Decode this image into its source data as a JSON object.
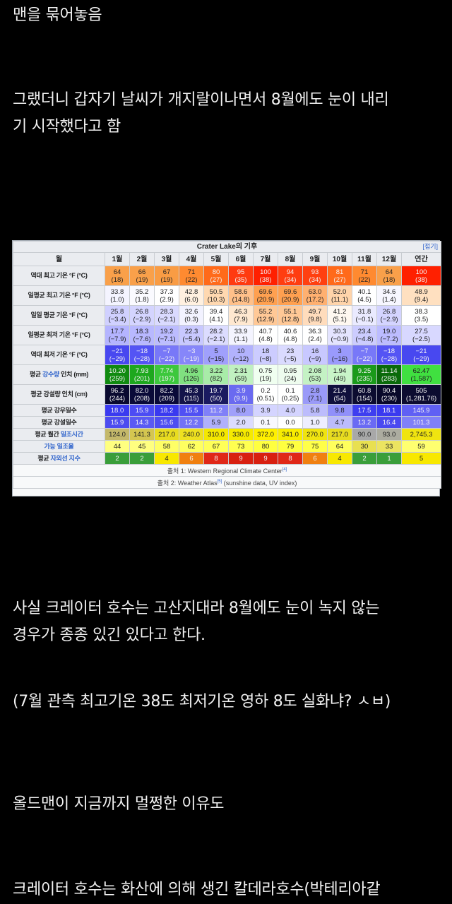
{
  "post": {
    "lines": [
      "맨을 묶어놓음",
      "그랬더니 갑자기 날씨가 개지랄이나면서 8월에도 눈이 내리",
      "기 시작했다고 함",
      "사실 크레이터 호수는 고산지대라 8월에도 눈이 녹지 않는",
      "경우가 종종 있긴 있다고 한다.",
      "(7월 관측 최고기온 38도 최저기온 영하 8도 실화냐? ㅅㅂ)",
      "올드맨이 지금까지 멀쩡한 이유도",
      "크레이터 호수는 화산에 의해 생긴 칼데라호수(박테리아같"
    ]
  },
  "climate_table": {
    "title": "Crater Lake의 기후",
    "toggle": "[접기]",
    "header": [
      "월",
      "1월",
      "2월",
      "3월",
      "4월",
      "5월",
      "6월",
      "7월",
      "8월",
      "9월",
      "10월",
      "11월",
      "12월",
      "연간"
    ],
    "rows": [
      {
        "label": [
          "역대 최고 기온 °F (°C)",
          "",
          ""
        ],
        "two": true,
        "cells": [
          [
            "64",
            "(18)",
            "#f9a04a"
          ],
          [
            "66",
            "(19)",
            "#f9a04a"
          ],
          [
            "67",
            "(19)",
            "#f99c44"
          ],
          [
            "71",
            "(22)",
            "#ff8a30"
          ],
          [
            "80",
            "(27)",
            "#ff6a1a"
          ],
          [
            "95",
            "(35)",
            "#ff3a10"
          ],
          [
            "100",
            "(38)",
            "#ff2000"
          ],
          [
            "94",
            "(34)",
            "#ff3d10"
          ],
          [
            "93",
            "(34)",
            "#ff4010"
          ],
          [
            "81",
            "(27)",
            "#ff6a1a"
          ],
          [
            "71",
            "(22)",
            "#ff8a30"
          ],
          [
            "64",
            "(18)",
            "#f9a04a"
          ],
          [
            "100",
            "(38)",
            "#ff2000"
          ]
        ]
      },
      {
        "label": [
          "일평균 최고 기온 °F (°C)",
          "",
          ""
        ],
        "two": true,
        "cells": [
          [
            "33.8",
            "(1.0)",
            "#f4f4ff"
          ],
          [
            "35.2",
            "(1.8)",
            "#fafaff"
          ],
          [
            "37.3",
            "(2.9)",
            "#ffffff"
          ],
          [
            "42.8",
            "(6.0)",
            "#fff0e0"
          ],
          [
            "50.5",
            "(10.3)",
            "#ffd8b0"
          ],
          [
            "58.6",
            "(14.8)",
            "#ffc08a"
          ],
          [
            "69.6",
            "(20.9)",
            "#ffa050"
          ],
          [
            "69.6",
            "(20.9)",
            "#ffa050"
          ],
          [
            "63.0",
            "(17.2)",
            "#ffb070"
          ],
          [
            "52.0",
            "(11.1)",
            "#ffd4aa"
          ],
          [
            "40.1",
            "(4.5)",
            "#ffffff"
          ],
          [
            "34.6",
            "(1.4)",
            "#f7f7ff"
          ],
          [
            "48.9",
            "(9.4)",
            "#ffe0c0"
          ]
        ]
      },
      {
        "label": [
          "일일 평균 기온 °F (°C)",
          "",
          ""
        ],
        "two": true,
        "cells": [
          [
            "25.8",
            "(−3.4)",
            "#d0d0ff"
          ],
          [
            "26.8",
            "(−2.9)",
            "#d4d4ff"
          ],
          [
            "28.3",
            "(−2.1)",
            "#dadaff"
          ],
          [
            "32.6",
            "(0.3)",
            "#f2f2ff"
          ],
          [
            "39.4",
            "(4.1)",
            "#ffffff"
          ],
          [
            "46.3",
            "(7.9)",
            "#ffe8d0"
          ],
          [
            "55.2",
            "(12.9)",
            "#ffc896"
          ],
          [
            "55.1",
            "(12.8)",
            "#ffc896"
          ],
          [
            "49.7",
            "(9.8)",
            "#ffdcbc"
          ],
          [
            "41.2",
            "(5.1)",
            "#fff8f0"
          ],
          [
            "31.8",
            "(−0.1)",
            "#eaeaff"
          ],
          [
            "26.8",
            "(−2.9)",
            "#d4d4ff"
          ],
          [
            "38.3",
            "(3.5)",
            "#ffffff"
          ]
        ]
      },
      {
        "label": [
          "일평균 최저 기온 °F (°C)",
          "",
          ""
        ],
        "two": true,
        "cells": [
          [
            "17.7",
            "(−7.9)",
            "#b4b4ff"
          ],
          [
            "18.3",
            "(−7.6)",
            "#b8b8ff"
          ],
          [
            "19.2",
            "(−7.1)",
            "#bcbcff"
          ],
          [
            "22.3",
            "(−5.4)",
            "#c8c8ff"
          ],
          [
            "28.2",
            "(−2.1)",
            "#dcdcff"
          ],
          [
            "33.9",
            "(1.1)",
            "#f4f4ff"
          ],
          [
            "40.7",
            "(4.8)",
            "#ffffff"
          ],
          [
            "40.6",
            "(4.8)",
            "#ffffff"
          ],
          [
            "36.3",
            "(2.4)",
            "#ffffff"
          ],
          [
            "30.3",
            "(−0.9)",
            "#e4e4ff"
          ],
          [
            "23.4",
            "(−4.8)",
            "#ccccff"
          ],
          [
            "19.0",
            "(−7.2)",
            "#bcbcff"
          ],
          [
            "27.5",
            "(−2.5)",
            "#d8d8ff"
          ]
        ]
      },
      {
        "label": [
          "역대 최저 기온 °F (°C)",
          "",
          ""
        ],
        "two": true,
        "cells": [
          [
            "−21",
            "(−29)",
            "#4848f0"
          ],
          [
            "−18",
            "(−28)",
            "#5454f4"
          ],
          [
            "−7",
            "(−22)",
            "#7878f8"
          ],
          [
            "−3",
            "(−19)",
            "#8686fa"
          ],
          [
            "5",
            "(−15)",
            "#a0a0fc"
          ],
          [
            "10",
            "(−12)",
            "#b2b2fd"
          ],
          [
            "18",
            "(−8)",
            "#ccccff"
          ],
          [
            "23",
            "(−5)",
            "#dadaff"
          ],
          [
            "16",
            "(−9)",
            "#c8c8ff"
          ],
          [
            "3",
            "(−16)",
            "#9a9afc"
          ],
          [
            "−7",
            "(−22)",
            "#7878f8"
          ],
          [
            "−18",
            "(−28)",
            "#5454f4"
          ],
          [
            "−21",
            "(−29)",
            "#4848f0"
          ]
        ]
      },
      {
        "label": [
          "평균 ",
          "강수량",
          " 인치 (mm)"
        ],
        "two": true,
        "cells": [
          [
            "10.20",
            "(259)",
            "#108a10"
          ],
          [
            "7.93",
            "(201)",
            "#1ea81e"
          ],
          [
            "7.74",
            "(197)",
            "#3cc83c"
          ],
          [
            "4.96",
            "(126)",
            "#80e080"
          ],
          [
            "3.22",
            "(82)",
            "#a8eca8"
          ],
          [
            "2.31",
            "(59)",
            "#c0f0c0"
          ],
          [
            "0.75",
            "(19)",
            "#f0fff0"
          ],
          [
            "0.95",
            "(24)",
            "#eefcee"
          ],
          [
            "2.08",
            "(53)",
            "#c4f2c4"
          ],
          [
            "1.94",
            "(49)",
            "#c8f4c8"
          ],
          [
            "9.25",
            "(235)",
            "#1a9a1a"
          ],
          [
            "11.14",
            "(283)",
            "#0a6a0a"
          ],
          [
            "62.47",
            "(1,587)",
            "#40e040"
          ]
        ]
      },
      {
        "label": [
          "평균 강설량 인치 (cm)",
          "",
          ""
        ],
        "two": true,
        "cells": [
          [
            "96.2",
            "(244)",
            "#0a0a30"
          ],
          [
            "82.0",
            "(208)",
            "#0a0a38"
          ],
          [
            "82.2",
            "(209)",
            "#0a0a38"
          ],
          [
            "45.3",
            "(115)",
            "#14144a"
          ],
          [
            "19.7",
            "(50)",
            "#1a1a60"
          ],
          [
            "3.9",
            "(9.9)",
            "#6a6af0"
          ],
          [
            "0.2",
            "(0.51)",
            "#ffffff"
          ],
          [
            "0.1",
            "(0.25)",
            "#ffffff"
          ],
          [
            "2.8",
            "(7.1)",
            "#9a9af8"
          ],
          [
            "21.4",
            "(54)",
            "#10103c"
          ],
          [
            "60.8",
            "(154)",
            "#0c0c30"
          ],
          [
            "90.4",
            "(230)",
            "#08082a"
          ],
          [
            "505",
            "(1,281.76)",
            "#0c0c30"
          ]
        ]
      },
      {
        "label": [
          "평균 강우일수",
          "",
          ""
        ],
        "two": false,
        "cells": [
          [
            "18.0",
            "",
            "#3a3af0"
          ],
          [
            "15.9",
            "",
            "#4c4cf4"
          ],
          [
            "18.2",
            "",
            "#3a3af0"
          ],
          [
            "15.5",
            "",
            "#5050f4"
          ],
          [
            "11.2",
            "",
            "#8080f8"
          ],
          [
            "8.0",
            "",
            "#a0a0fa"
          ],
          [
            "3.9",
            "",
            "#d4d4ff"
          ],
          [
            "4.0",
            "",
            "#d4d4ff"
          ],
          [
            "5.8",
            "",
            "#bcbcfc"
          ],
          [
            "9.8",
            "",
            "#9090fa"
          ],
          [
            "17.5",
            "",
            "#3e3ef0"
          ],
          [
            "18.1",
            "",
            "#3a3af0"
          ],
          [
            "145.9",
            "",
            "#6060f4"
          ]
        ]
      },
      {
        "label": [
          "평균 강설일수",
          "",
          ""
        ],
        "two": false,
        "cells": [
          [
            "15.9",
            "",
            "#4c4cf0"
          ],
          [
            "14.3",
            "",
            "#5a5af4"
          ],
          [
            "15.6",
            "",
            "#4e4ef2"
          ],
          [
            "12.2",
            "",
            "#7272f6"
          ],
          [
            "5.9",
            "",
            "#b0b0fc"
          ],
          [
            "2.0",
            "",
            "#dcdcff"
          ],
          [
            "0.1",
            "",
            "#f8f8ff"
          ],
          [
            "0.0",
            "",
            "#ffffff"
          ],
          [
            "1.0",
            "",
            "#eeeeff"
          ],
          [
            "4.7",
            "",
            "#bcbcfc"
          ],
          [
            "13.2",
            "",
            "#6a6af4"
          ],
          [
            "16.4",
            "",
            "#4a4af0"
          ],
          [
            "101.3",
            "",
            "#8080f8"
          ]
        ]
      },
      {
        "label": [
          "평균 월간 ",
          "일조시간",
          ""
        ],
        "two": false,
        "cells": [
          [
            "124.0",
            "",
            "#c4b86a"
          ],
          [
            "141.3",
            "",
            "#d4c650"
          ],
          [
            "217.0",
            "",
            "#e8dc20"
          ],
          [
            "240.0",
            "",
            "#eee020"
          ],
          [
            "310.0",
            "",
            "#f4e800"
          ],
          [
            "330.0",
            "",
            "#f6ea00"
          ],
          [
            "372.0",
            "",
            "#fff000"
          ],
          [
            "341.0",
            "",
            "#f8ec00"
          ],
          [
            "270.0",
            "",
            "#f0e410"
          ],
          [
            "217.0",
            "",
            "#e8dc20"
          ],
          [
            "90.0",
            "",
            "#a8a8a8"
          ],
          [
            "93.0",
            "",
            "#acaca0"
          ],
          [
            "2,745.3",
            "",
            "#f0e410"
          ]
        ]
      },
      {
        "label": [
          "",
          "가능 일조율",
          ""
        ],
        "two": false,
        "cells": [
          [
            "44",
            "",
            "#ffff80"
          ],
          [
            "45",
            "",
            "#ffff80"
          ],
          [
            "58",
            "",
            "#ffff66"
          ],
          [
            "62",
            "",
            "#ffff60"
          ],
          [
            "67",
            "",
            "#ffff58"
          ],
          [
            "73",
            "",
            "#ffff50"
          ],
          [
            "80",
            "",
            "#ffff40"
          ],
          [
            "79",
            "",
            "#ffff40"
          ],
          [
            "75",
            "",
            "#ffff48"
          ],
          [
            "64",
            "",
            "#ffff5c"
          ],
          [
            "30",
            "",
            "#e8e050"
          ],
          [
            "33",
            "",
            "#ece460"
          ],
          [
            "59",
            "",
            "#ffff70"
          ]
        ]
      },
      {
        "label": [
          "평균 ",
          "자외선 지수",
          ""
        ],
        "two": false,
        "cells": [
          [
            "2",
            "",
            "#3a9e3a"
          ],
          [
            "2",
            "",
            "#3a9e3a"
          ],
          [
            "4",
            "",
            "#f8e800"
          ],
          [
            "6",
            "",
            "#f08010"
          ],
          [
            "8",
            "",
            "#e02818"
          ],
          [
            "9",
            "",
            "#d82010"
          ],
          [
            "9",
            "",
            "#d82010"
          ],
          [
            "8",
            "",
            "#e02818"
          ],
          [
            "6",
            "",
            "#f08010"
          ],
          [
            "4",
            "",
            "#f8e800"
          ],
          [
            "2",
            "",
            "#3a9e3a"
          ],
          [
            "1",
            "",
            "#3a9e3a"
          ],
          [
            "5",
            "",
            "#f8e800"
          ]
        ]
      }
    ],
    "source1": {
      "text": "출처 1: Western Regional Climate Center",
      "ref": "[4]"
    },
    "source2": {
      "text": "출처 2: Weather Atlas",
      "ref": "[5]",
      "tail": " (sunshine data, UV index)"
    }
  }
}
